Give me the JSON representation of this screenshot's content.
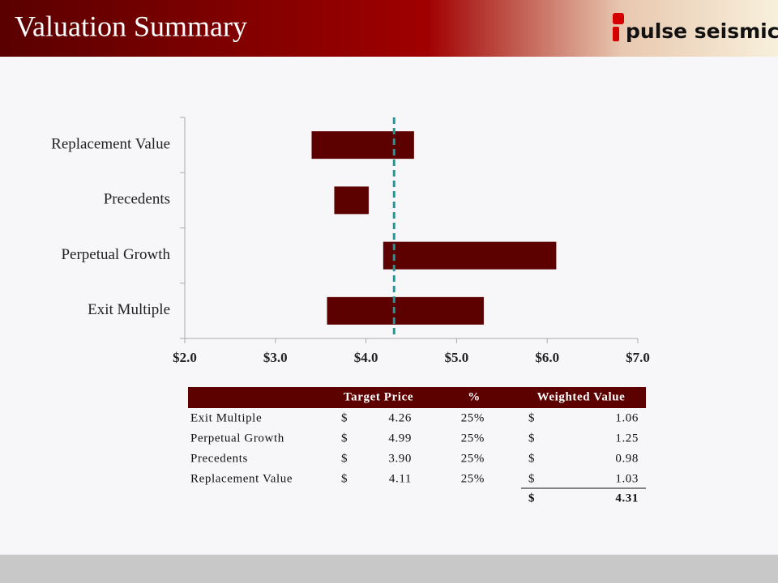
{
  "header": {
    "title": "Valuation Summary",
    "logo": "pulse seismic"
  },
  "chart_data": {
    "type": "range-bar",
    "categories": [
      "Replacement Value",
      "Precedents",
      "Perpetual Growth",
      "Exit Multiple"
    ],
    "low": [
      3.4,
      3.65,
      4.19,
      3.57
    ],
    "high": [
      4.53,
      4.03,
      6.1,
      5.3
    ],
    "color": "#5c0000",
    "target_line": 4.31,
    "target_line_color": "#1a9a9a",
    "xlim": [
      2,
      7
    ],
    "xticks": [
      {
        "value": 2,
        "label": "$2.0"
      },
      {
        "value": 3,
        "label": "$3.0"
      },
      {
        "value": 4,
        "label": "$4.0"
      },
      {
        "value": 5,
        "label": "$5.0"
      },
      {
        "value": 6,
        "label": "$6.0"
      },
      {
        "value": 7,
        "label": "$7.0"
      }
    ]
  },
  "table": {
    "columns": [
      "Target Price",
      "%",
      "Weighted Value"
    ],
    "rows": [
      [
        "Exit Multiple",
        "$",
        "4.26",
        "25%",
        "$",
        "1.06"
      ],
      [
        "Perpetual Growth",
        "$",
        "4.99",
        "25%",
        "$",
        "1.25"
      ],
      [
        "Precedents",
        "$",
        "3.90",
        "25%",
        "$",
        "0.98"
      ],
      [
        "Replacement Value",
        "$",
        "4.11",
        "25%",
        "$",
        "1.03"
      ]
    ],
    "total": [
      "$",
      "4.31"
    ]
  }
}
